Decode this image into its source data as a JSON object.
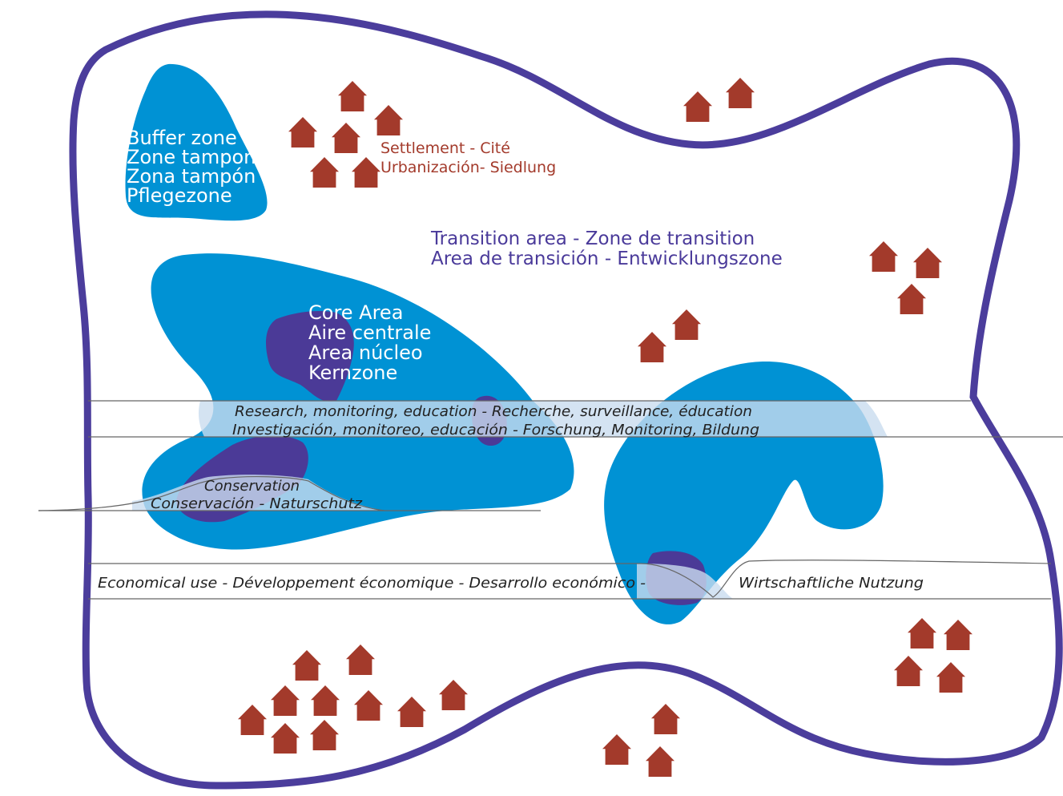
{
  "colors": {
    "boundary": "#4b3d9c",
    "buffer": "#0092d4",
    "core": "#4b3a97",
    "settlement": "#a33a2b",
    "band_fill": "#c9dcef",
    "band_line": "#666666"
  },
  "icon": "house-icon",
  "buffer_zone": {
    "lines": [
      "Buffer zone",
      "Zone tampon",
      "Zona tampón",
      "Pflegezone"
    ]
  },
  "core_area": {
    "lines": [
      "Core Area",
      "Aire centrale",
      "Area núcleo",
      "Kernzone"
    ]
  },
  "settlement": {
    "lines": [
      "Settlement - Cité",
      "Urbanización-  Siedlung"
    ]
  },
  "transition_area": {
    "lines": [
      "Transition area - Zone de transition",
      "Area de transición - Entwicklungszone"
    ]
  },
  "research_band": {
    "lines": [
      "Research, monitoring, education - Recherche, surveillance, éducation",
      "Investigación, monitoreo, educación - Forschung, Monitoring, Bildung"
    ]
  },
  "conservation_band": {
    "lines": [
      "Conservation",
      "Conservación - Naturschutz"
    ]
  },
  "economic_band": {
    "left": "Economical use -  Développement économique - Desarrollo económico -",
    "right": "Wirtschaftliche Nutzung"
  }
}
